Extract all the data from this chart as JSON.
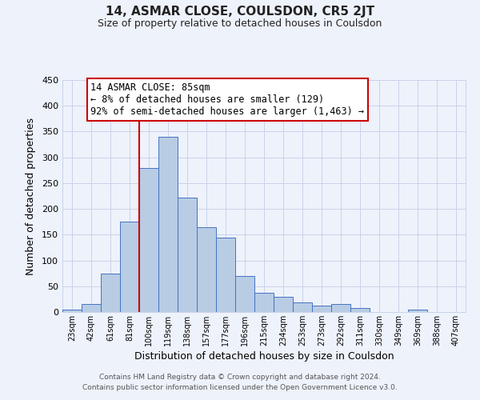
{
  "title": "14, ASMAR CLOSE, COULSDON, CR5 2JT",
  "subtitle": "Size of property relative to detached houses in Coulsdon",
  "xlabel": "Distribution of detached houses by size in Coulsdon",
  "ylabel": "Number of detached properties",
  "bar_labels": [
    "23sqm",
    "42sqm",
    "61sqm",
    "81sqm",
    "100sqm",
    "119sqm",
    "138sqm",
    "157sqm",
    "177sqm",
    "196sqm",
    "215sqm",
    "234sqm",
    "253sqm",
    "273sqm",
    "292sqm",
    "311sqm",
    "330sqm",
    "349sqm",
    "369sqm",
    "388sqm",
    "407sqm"
  ],
  "bar_values": [
    4,
    15,
    75,
    175,
    280,
    340,
    222,
    165,
    145,
    70,
    38,
    30,
    18,
    12,
    16,
    7,
    0,
    0,
    4,
    0,
    0
  ],
  "bar_color": "#b8cce4",
  "bar_edge_color": "#4472c4",
  "vline_color": "#cc0000",
  "vline_x_index": 3,
  "ylim": [
    0,
    450
  ],
  "yticks": [
    0,
    50,
    100,
    150,
    200,
    250,
    300,
    350,
    400,
    450
  ],
  "annotation_title": "14 ASMAR CLOSE: 85sqm",
  "annotation_line1": "← 8% of detached houses are smaller (129)",
  "annotation_line2": "92% of semi-detached houses are larger (1,463) →",
  "annotation_box_color": "#ffffff",
  "annotation_box_edge": "#cc0000",
  "footer1": "Contains HM Land Registry data © Crown copyright and database right 2024.",
  "footer2": "Contains public sector information licensed under the Open Government Licence v3.0.",
  "bg_color": "#eef2fb",
  "grid_color": "#c8d4e8"
}
